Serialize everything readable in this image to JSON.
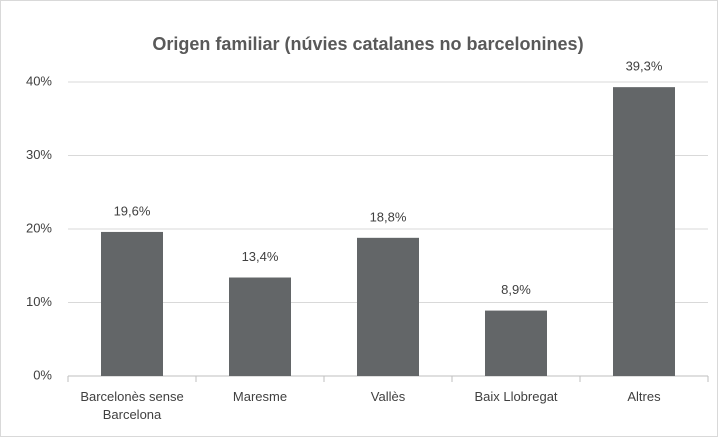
{
  "chart_data": {
    "type": "bar",
    "title": "Origen familiar (núvies catalanes no barcelonines)",
    "categories": [
      "Barcelonès sense Barcelona",
      "Maresme",
      "Vallès",
      "Baix Llobregat",
      "Altres"
    ],
    "values": [
      19.6,
      13.4,
      18.8,
      8.9,
      39.3
    ],
    "value_labels": [
      "19,6%",
      "13,4%",
      "18,8%",
      "8,9%",
      "39,3%"
    ],
    "color": "#636668",
    "ylim": [
      0,
      40
    ],
    "yticks": [
      {
        "value": 0,
        "label": "0%"
      },
      {
        "value": 10,
        "label": "10%"
      },
      {
        "value": 20,
        "label": "20%"
      },
      {
        "value": 30,
        "label": "30%"
      },
      {
        "value": 40,
        "label": "40%"
      }
    ],
    "grid": true
  }
}
